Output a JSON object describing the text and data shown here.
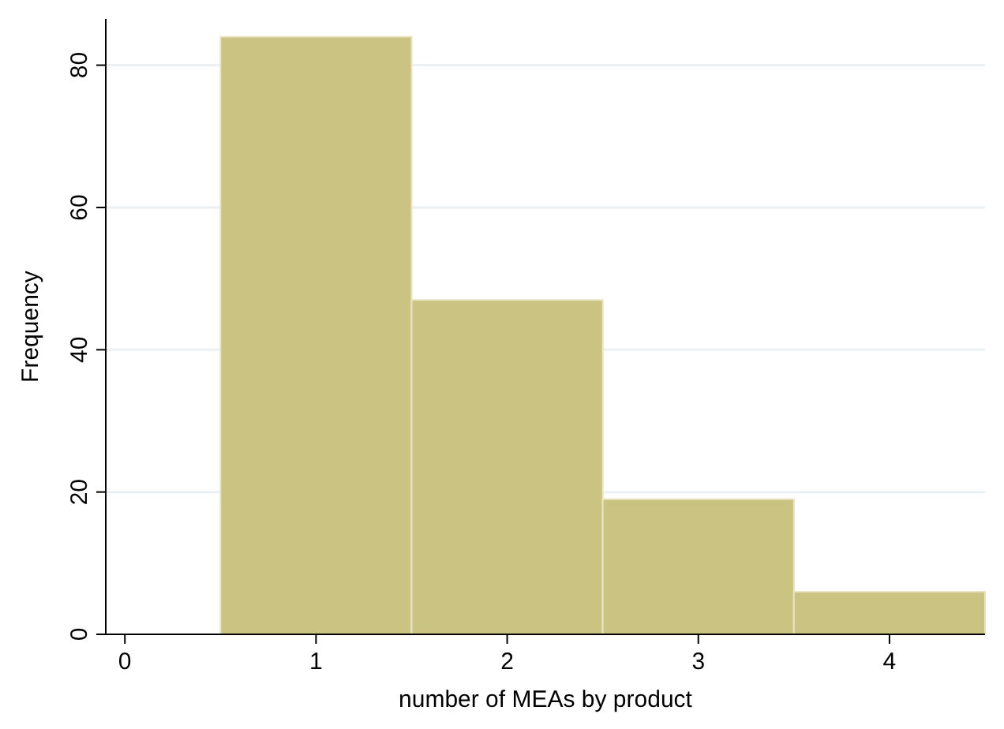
{
  "chart_data": {
    "type": "histogram",
    "xlabel": "number of MEAs by product",
    "ylabel": "Frequency",
    "bins": [
      0.5,
      1.5,
      2.5,
      3.5,
      4.5
    ],
    "values": [
      84,
      47,
      19,
      6
    ],
    "color": "#cbc382",
    "xlim": [
      -0.1,
      4.5
    ],
    "xticks": [
      0,
      1,
      2,
      3,
      4
    ],
    "ylim": [
      0,
      86.5
    ],
    "yticks": [
      0,
      20,
      40,
      60,
      80
    ],
    "grid": "y"
  }
}
